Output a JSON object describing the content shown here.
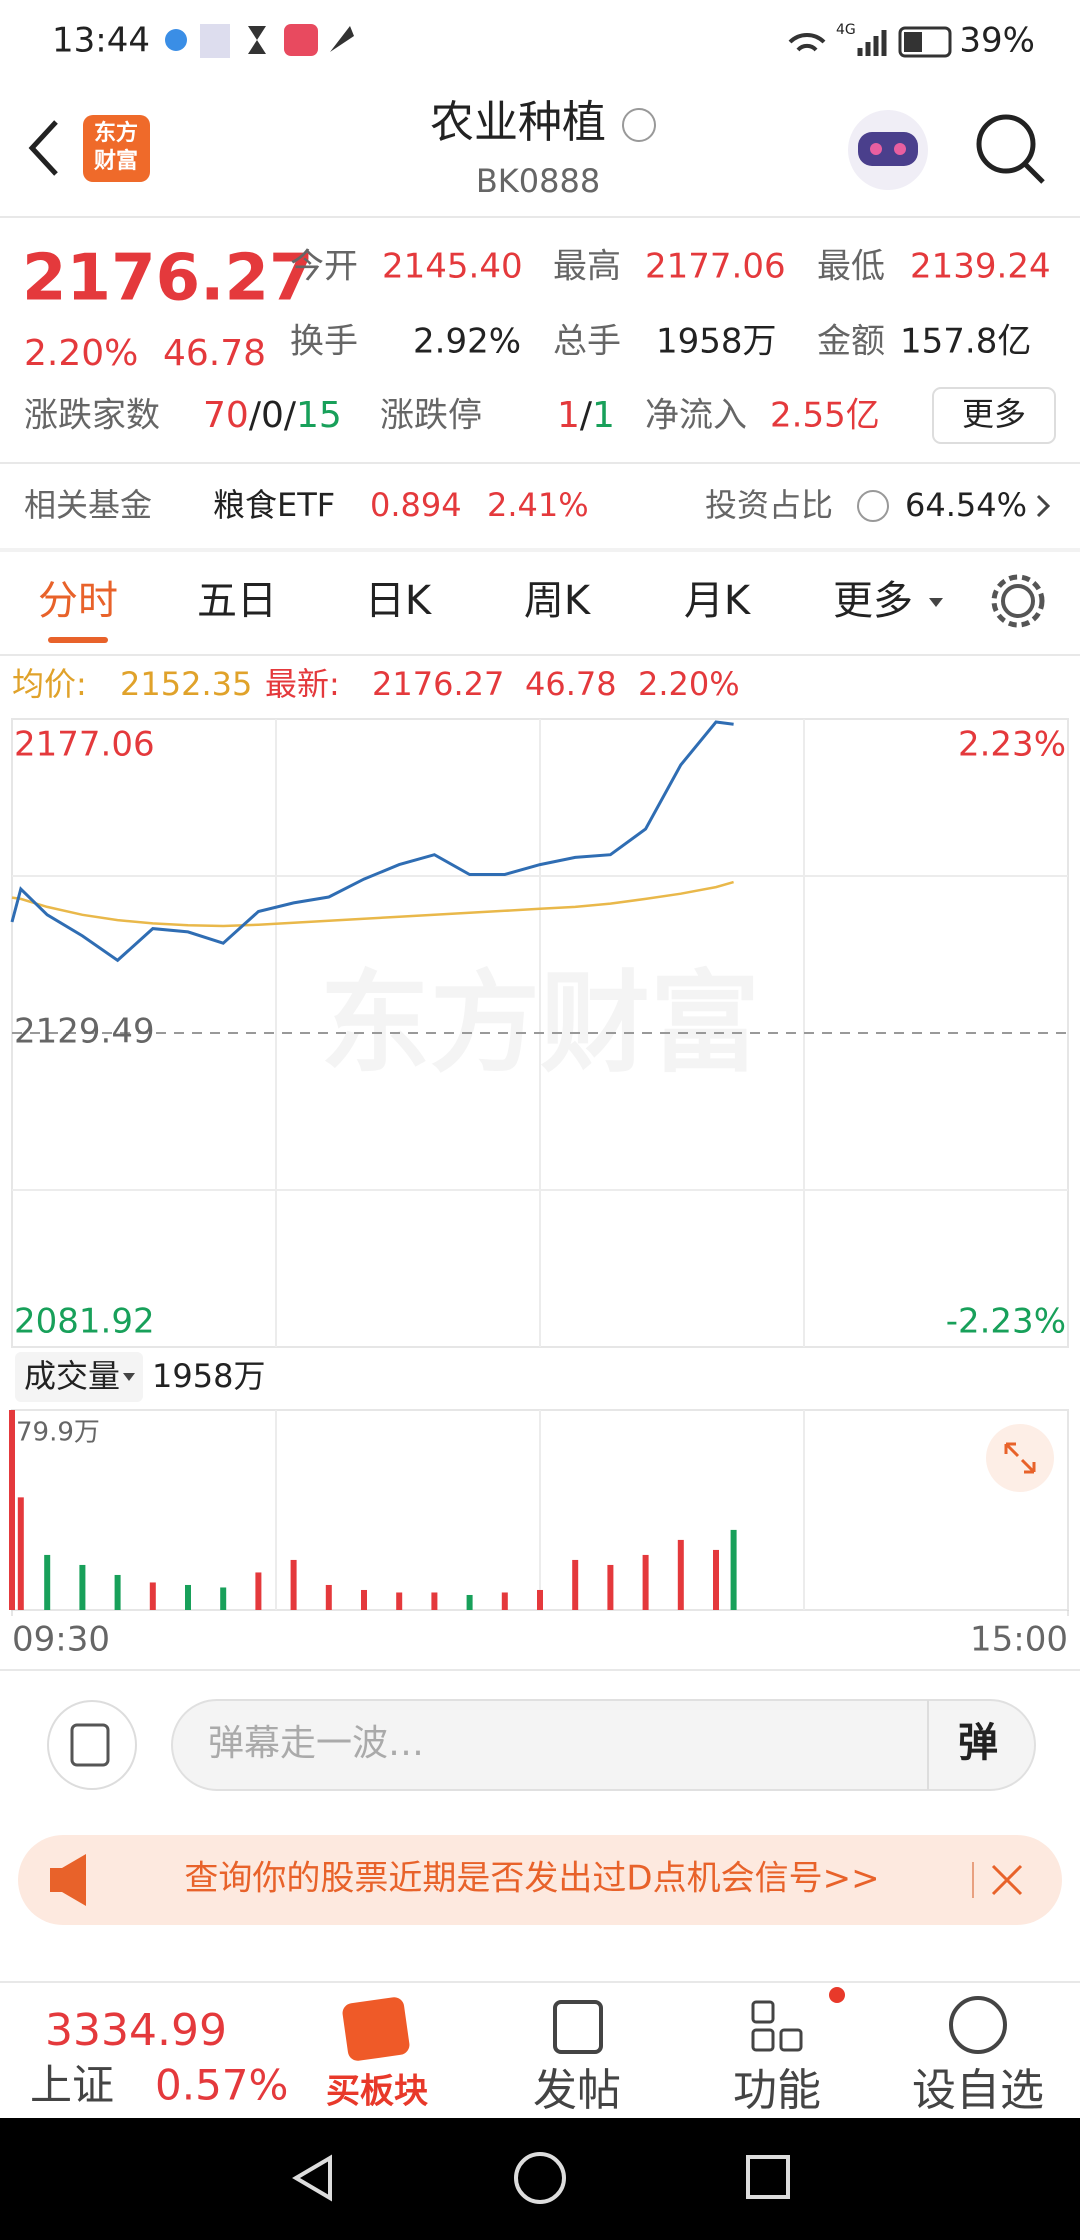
{
  "status_bar": {
    "time": "13:44",
    "network": "4G",
    "battery": "39%"
  },
  "header": {
    "logo": [
      "东方",
      "财富"
    ],
    "title": "农业种植",
    "code": "BK0888"
  },
  "quote": {
    "price": "2176.27",
    "change_pct": "2.20%",
    "change": "46.78",
    "stats": [
      {
        "label": "今开",
        "value": "2145.40"
      },
      {
        "label": "最高",
        "value": "2177.06"
      },
      {
        "label": "最低",
        "value": "2139.24"
      },
      {
        "label": "换手",
        "value": "2.92%"
      },
      {
        "label": "总手",
        "value": "1958万"
      },
      {
        "label": "金额",
        "value": "157.8亿"
      }
    ],
    "breadth_label": "涨跌家数",
    "up": "70",
    "flat": "0",
    "down": "15",
    "separator": "/",
    "limit_label": "涨跌停",
    "limit_up": "1",
    "limit_down": "1",
    "inflow_label": "净流入",
    "inflow": "2.55亿",
    "more": "更多"
  },
  "fund": {
    "label": "相关基金",
    "name": "粮食ETF",
    "price": "0.894",
    "pct": "2.41%",
    "ratio_label": "投资占比",
    "ratio": "64.54%"
  },
  "tabs": [
    "分时",
    "五日",
    "日K",
    "周K",
    "月K",
    "更多"
  ],
  "info_line": {
    "avg_label": "均价:",
    "avg": "2152.35",
    "latest_label": "最新:",
    "latest": "2176.27",
    "change": "46.78",
    "pct": "2.20%"
  },
  "watermark": "东方财富",
  "volume_header": {
    "label": "成交量",
    "total": "1958万"
  },
  "chart_data": [
    {
      "type": "line",
      "up_color": "#e4393c",
      "down_color": "#18a05a",
      "grid": true,
      "x": [
        0,
        2,
        8,
        16,
        24,
        32,
        40,
        48,
        56,
        64,
        72,
        80,
        88,
        96,
        104,
        112,
        120,
        128,
        136,
        144,
        152,
        160,
        164
      ],
      "xlim": [
        0,
        240
      ],
      "series": [
        {
          "color": "#2f6db3",
          "values": [
            2146.3,
            2151.3,
            2147.4,
            2144.2,
            2140.5,
            2145.3,
            2144.8,
            2143.1,
            2147.9,
            2149.2,
            2150.1,
            2152.8,
            2155.0,
            2156.5,
            2153.5,
            2153.5,
            2155.0,
            2156.1,
            2156.5,
            2160.4,
            2170.1,
            2176.6,
            2176.27
          ]
        },
        {
          "color": "#e9b84a",
          "values": [
            2150.0,
            2149.8,
            2148.6,
            2147.4,
            2146.6,
            2146.1,
            2145.8,
            2145.7,
            2145.9,
            2146.2,
            2146.5,
            2146.8,
            2147.1,
            2147.4,
            2147.7,
            2148.0,
            2148.3,
            2148.6,
            2149.1,
            2149.8,
            2150.6,
            2151.6,
            2152.35
          ]
        }
      ],
      "ylim": [
        2081.92,
        2177.06
      ],
      "yticks": [
        2081.92,
        2129.49,
        2177.06
      ],
      "y2lim": [
        -2.23,
        2.23
      ],
      "y2ticks": [
        {
          "value": -2.23,
          "label": "-2.23%"
        },
        {
          "value": 2.23,
          "label": "2.23%"
        }
      ]
    },
    {
      "type": "bar",
      "up_color": "#e4393c",
      "down_color": "#18a05a",
      "x": [
        0,
        2,
        8,
        16,
        24,
        32,
        40,
        48,
        56,
        64,
        72,
        80,
        88,
        96,
        104,
        112,
        120,
        128,
        136,
        144,
        152,
        160,
        164
      ],
      "values": [
        79.9,
        45,
        22,
        18,
        14,
        11,
        10,
        9,
        15,
        20,
        10,
        8,
        7,
        7,
        6,
        7,
        8,
        20,
        18,
        22,
        28,
        24,
        32
      ],
      "xlim": [
        0,
        240
      ],
      "xticks": [
        {
          "value": 0,
          "label": "09:30"
        },
        {
          "value": 240,
          "label": "15:00"
        }
      ],
      "ylim": [
        0,
        79.9
      ],
      "yticks": [
        {
          "value": 79.9,
          "label": "79.9万"
        }
      ]
    }
  ],
  "comment_bar": {
    "placeholder": "弹幕走一波…",
    "button": "弹"
  },
  "banner": {
    "text": "查询你的股票近期是否发出过D点机会信号>>"
  },
  "bottom_nav": {
    "index_value": "3334.99",
    "index_name": "上证",
    "index_change": "0.57%",
    "items": [
      "买板块",
      "发帖",
      "功能",
      "设自选"
    ]
  }
}
